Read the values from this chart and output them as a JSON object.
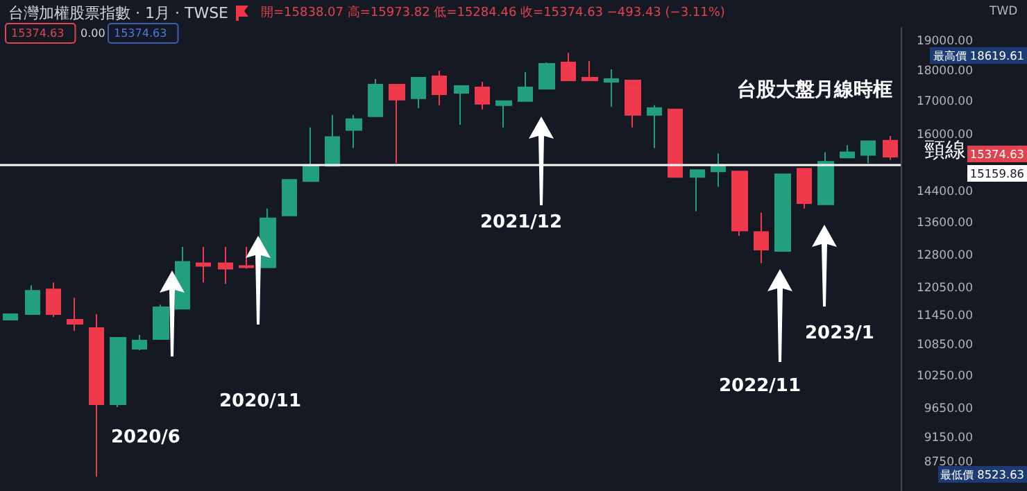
{
  "chart_data": {
    "type": "candlestick",
    "categories": [
      null,
      null,
      null,
      null,
      null,
      null,
      null,
      null,
      null,
      null,
      null,
      null,
      null,
      null,
      null,
      null,
      null,
      null,
      null,
      null,
      null,
      null,
      null,
      null,
      null,
      null,
      null,
      null,
      null,
      null,
      null,
      null,
      null,
      null,
      null,
      null,
      null,
      null,
      null,
      null,
      null,
      null
    ],
    "ohlc": [
      [
        11382,
        11498,
        11382,
        11498
      ],
      [
        11498,
        12130,
        11498,
        12007
      ],
      [
        12038,
        12192,
        11440,
        11498
      ],
      [
        11382,
        11855,
        11152,
        11295
      ],
      [
        11209,
        11498,
        8523.63,
        9738
      ],
      [
        9738,
        11011,
        9688,
        11011
      ],
      [
        10789,
        11067,
        10761,
        10955
      ],
      [
        10983,
        11705,
        10983,
        11646
      ],
      [
        11616,
        13019,
        11616,
        12665
      ],
      [
        12633,
        13019,
        12192,
        12569
      ],
      [
        12633,
        13019,
        12161,
        12505
      ],
      [
        12569,
        13019,
        12505,
        12537
      ],
      [
        12537,
        13970,
        12537,
        13724
      ],
      [
        13794,
        14733,
        13794,
        14733
      ],
      [
        14695,
        16228,
        14695,
        15113
      ],
      [
        15113,
        16604,
        15113,
        15943
      ],
      [
        16146,
        16604,
        15622,
        16478
      ],
      [
        16562,
        17740,
        16562,
        17561
      ],
      [
        17561,
        17561,
        15190,
        17076
      ],
      [
        17119,
        17785,
        16817,
        17785
      ],
      [
        17830,
        18013,
        16903,
        17250
      ],
      [
        17294,
        17516,
        16311,
        17516
      ],
      [
        17472,
        17650,
        16774,
        16946
      ],
      [
        16903,
        17032,
        16228,
        17032
      ],
      [
        17032,
        17967,
        17032,
        17472
      ],
      [
        17427,
        18291,
        17427,
        18245
      ],
      [
        18291,
        18619.61,
        17695,
        17695
      ],
      [
        17785,
        18338,
        17695,
        17695
      ],
      [
        17650,
        18059,
        16860,
        17740
      ],
      [
        17695,
        17695,
        16228,
        16604
      ],
      [
        16604,
        16903,
        15622,
        16817
      ],
      [
        16774,
        16774,
        14808,
        14808
      ],
      [
        14808,
        14998,
        13900,
        14998
      ],
      [
        14960,
        15464,
        14546,
        15113
      ],
      [
        14960,
        14960,
        13281,
        13416
      ],
      [
        13382,
        13865,
        12633,
        12953
      ],
      [
        12920,
        14884,
        12920,
        14884
      ],
      [
        15036,
        15036,
        13970,
        14112
      ],
      [
        14077,
        15503,
        14077,
        15229
      ],
      [
        15346,
        15701,
        15346,
        15503
      ],
      [
        15424,
        15822,
        15190,
        15822
      ],
      [
        15838.07,
        15973.82,
        15284.46,
        15374.63
      ]
    ],
    "colors": [
      "#22a07e",
      "#22a07e",
      "#f0394a",
      "#f0394a",
      "#f0394a",
      "#22a07e",
      "#22a07e",
      "#22a07e",
      "#22a07e",
      "#f0394a",
      "#f0394a",
      "#f0394a",
      "#22a07e",
      "#22a07e",
      "#22a07e",
      "#22a07e",
      "#22a07e",
      "#22a07e",
      "#f0394a",
      "#22a07e",
      "#f0394a",
      "#22a07e",
      "#f0394a",
      "#22a07e",
      "#22a07e",
      "#22a07e",
      "#f0394a",
      "#f0394a",
      "#22a07e",
      "#f0394a",
      "#22a07e",
      "#f0394a",
      "#22a07e",
      "#22a07e",
      "#f0394a",
      "#f0394a",
      "#22a07e",
      "#f0394a",
      "#22a07e",
      "#22a07e",
      "#22a07e",
      "#f0394a"
    ],
    "log": true,
    "ylim": [
      8300,
      19500
    ],
    "yticks": [
      {
        "value": 8750,
        "label": "8750.00"
      },
      {
        "value": 9150,
        "label": "9150.00"
      },
      {
        "value": 9650,
        "label": "9650.00"
      },
      {
        "value": 10250,
        "label": "10250.00"
      },
      {
        "value": 10850,
        "label": "10850.00"
      },
      {
        "value": 11450,
        "label": "11450.00"
      },
      {
        "value": 12050,
        "label": "12050.00"
      },
      {
        "value": 12800,
        "label": "12800.00"
      },
      {
        "value": 13600,
        "label": "13600.00"
      },
      {
        "value": 14400,
        "label": "14400.00"
      },
      {
        "value": 16000,
        "label": "16000.00"
      },
      {
        "value": 17000,
        "label": "17000.00"
      },
      {
        "value": 18000,
        "label": "18000.00"
      },
      {
        "value": 19000,
        "label": "19000.00"
      }
    ],
    "tick_labels": "y",
    "grid": false,
    "ref_lines": [
      {
        "axis": "y",
        "value": 15159.86,
        "label": "頸線",
        "color": "#ffffff"
      }
    ],
    "annotations": [
      "台灣加權股票指數 · 1月 · TWSE",
      "開=15838.07 高=15973.82 低=15284.46 收=15374.63 −493.43 (−3.11%)",
      "15374.63",
      "0.00",
      "15374.63",
      "TWD",
      "最高價 18619.61",
      "最低價 8523.63",
      "15374.63",
      "15159.86",
      "台股大盤月線時框",
      "2020/6",
      "2020/11",
      "2021/12",
      "2022/11",
      "2023/1"
    ]
  }
}
